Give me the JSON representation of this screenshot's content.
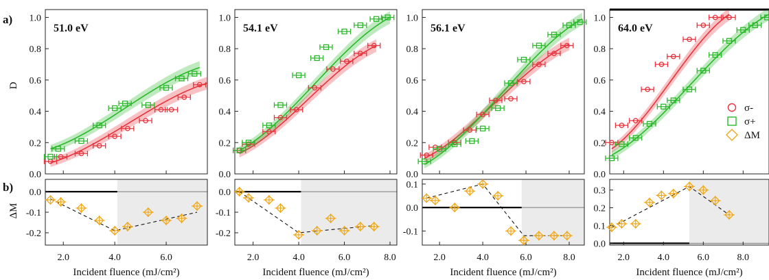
{
  "figure": {
    "row_a_label": "a)",
    "row_b_label": "b)",
    "ylabel_top": "D",
    "ylabel_bottom": "ΔM",
    "xlabel": "Incident fluence (mJ/cm²)"
  },
  "colors": {
    "sigma_minus": "#e8323c",
    "sigma_plus": "#2ab82a",
    "delta_m": "#f0a818",
    "shade": "#ebebeb"
  },
  "legend": {
    "placement": "right of panel 4, middle",
    "items": [
      {
        "key": "sigma_minus",
        "label": "σ-",
        "marker": "circle"
      },
      {
        "key": "sigma_plus",
        "label": "σ+",
        "marker": "square"
      },
      {
        "key": "delta_m",
        "label": "ΔM",
        "marker": "diamond"
      }
    ]
  },
  "chart_data": [
    {
      "type": "scatter",
      "title": "51.0 eV",
      "xlabel": "Incident fluence (mJ/cm²)",
      "ylabel": "D",
      "xlim": [
        1.3,
        7.6
      ],
      "xticks": [
        2.0,
        4.0,
        6.0
      ],
      "top": {
        "ylim": [
          0.0,
          1.05
        ],
        "yticks": [
          0.0,
          0.2,
          0.4,
          0.6,
          0.8,
          1.0
        ],
        "series": [
          {
            "key": "sigma_minus",
            "x": [
              1.5,
              1.9,
              2.7,
              3.4,
              4.0,
              4.5,
              5.2,
              5.8,
              6.2,
              6.7,
              7.3
            ],
            "y": [
              0.08,
              0.11,
              0.13,
              0.18,
              0.24,
              0.29,
              0.34,
              0.41,
              0.41,
              0.49,
              0.57
            ]
          },
          {
            "key": "sigma_plus",
            "x": [
              1.5,
              1.8,
              2.7,
              3.4,
              4.0,
              4.4,
              5.3,
              6.0,
              6.6,
              7.1
            ],
            "y": [
              0.11,
              0.16,
              0.21,
              0.31,
              0.42,
              0.45,
              0.44,
              0.55,
              0.61,
              0.64
            ]
          }
        ],
        "fits": [
          {
            "key": "sigma_minus",
            "x": [
              1.5,
              7.6
            ],
            "y": [
              0.07,
              0.58
            ]
          },
          {
            "key": "sigma_plus",
            "x": [
              1.5,
              7.3
            ],
            "y": [
              0.16,
              0.68
            ]
          }
        ]
      },
      "bottom": {
        "ylim": [
          -0.26,
          0.06
        ],
        "yticks": [
          -0.2,
          -0.1,
          0.0
        ],
        "shade_from_x": 4.1,
        "series": [
          {
            "key": "delta_m",
            "x": [
              1.5,
              1.9,
              2.7,
              3.4,
              4.0,
              4.5,
              5.3,
              6.0,
              6.6,
              7.2
            ],
            "y": [
              -0.04,
              -0.05,
              -0.08,
              -0.14,
              -0.19,
              -0.17,
              -0.1,
              -0.14,
              -0.13,
              -0.07
            ]
          }
        ],
        "fit": {
          "x": [
            1.5,
            4.0,
            7.2
          ],
          "y": [
            -0.035,
            -0.19,
            -0.1
          ]
        }
      }
    },
    {
      "type": "scatter",
      "title": "54.1 eV",
      "xlabel": "Incident fluence (mJ/cm²)",
      "xlim": [
        1.2,
        8.3
      ],
      "xticks": [
        2.0,
        4.0,
        6.0,
        8.0
      ],
      "top": {
        "ylim": [
          0.0,
          1.05
        ],
        "yticks": [
          0.0,
          0.2,
          0.4,
          0.6,
          0.8,
          1.0
        ],
        "series": [
          {
            "key": "sigma_minus",
            "x": [
              1.4,
              1.8,
              2.7,
              3.2,
              3.9,
              4.7,
              5.5,
              6.1,
              6.7,
              7.3
            ],
            "y": [
              0.15,
              0.19,
              0.27,
              0.36,
              0.41,
              0.55,
              0.67,
              0.72,
              0.77,
              0.82
            ]
          },
          {
            "key": "sigma_plus",
            "x": [
              1.4,
              1.8,
              2.7,
              3.2,
              4.0,
              4.8,
              5.2,
              6.0,
              6.7,
              7.4,
              7.9
            ],
            "y": [
              0.15,
              0.2,
              0.31,
              0.44,
              0.63,
              0.74,
              0.81,
              0.91,
              0.95,
              0.99,
              1.0
            ]
          }
        ],
        "fits": [
          {
            "key": "sigma_minus",
            "x": [
              1.4,
              7.4
            ],
            "y": [
              0.13,
              0.82
            ]
          },
          {
            "key": "sigma_plus",
            "x": [
              1.4,
              8.0
            ],
            "y": [
              0.15,
              1.0
            ]
          }
        ]
      },
      "bottom": {
        "ylim": [
          -0.26,
          0.06
        ],
        "yticks": [
          -0.2,
          -0.1,
          0.0
        ],
        "shade_from_x": 4.1,
        "series": [
          {
            "key": "delta_m",
            "x": [
              1.4,
              1.8,
              2.7,
              3.2,
              4.0,
              4.8,
              5.4,
              6.0,
              6.7,
              7.3
            ],
            "y": [
              0.0,
              -0.03,
              -0.04,
              -0.08,
              -0.21,
              -0.19,
              -0.13,
              -0.19,
              -0.17,
              -0.17
            ]
          }
        ],
        "fit": {
          "x": [
            1.4,
            4.0,
            7.3
          ],
          "y": [
            0.0,
            -0.2,
            -0.165
          ]
        }
      }
    },
    {
      "type": "scatter",
      "title": "56.1 eV",
      "xlabel": "Incident fluence (mJ/cm²)",
      "xlim": [
        1.2,
        8.7
      ],
      "xticks": [
        2.0,
        4.0,
        6.0,
        8.0
      ],
      "top": {
        "ylim": [
          0.0,
          1.05
        ],
        "yticks": [
          0.0,
          0.2,
          0.4,
          0.6,
          0.8,
          1.0
        ],
        "series": [
          {
            "key": "sigma_minus",
            "x": [
              1.4,
              1.8,
              2.7,
              3.4,
              4.0,
              4.6,
              5.3,
              5.9,
              6.6,
              7.3,
              7.9
            ],
            "y": [
              0.12,
              0.17,
              0.2,
              0.28,
              0.38,
              0.47,
              0.48,
              0.59,
              0.7,
              0.77,
              0.82
            ]
          },
          {
            "key": "sigma_plus",
            "x": [
              1.3,
              2.0,
              2.7,
              3.5,
              4.0,
              4.7,
              5.3,
              5.9,
              6.6,
              7.3,
              8.0,
              8.5
            ],
            "y": [
              0.08,
              0.16,
              0.19,
              0.21,
              0.29,
              0.42,
              0.58,
              0.73,
              0.82,
              0.89,
              0.95,
              0.97
            ]
          }
        ],
        "fits": [
          {
            "key": "sigma_minus",
            "x": [
              1.3,
              8.0
            ],
            "y": [
              0.1,
              0.83
            ]
          },
          {
            "key": "sigma_plus",
            "x": [
              1.3,
              8.6
            ],
            "y": [
              0.06,
              0.99
            ]
          }
        ]
      },
      "bottom": {
        "ylim": [
          -0.16,
          0.12
        ],
        "yticks": [
          -0.1,
          0.0,
          0.1
        ],
        "shade_from_x": 5.8,
        "series": [
          {
            "key": "delta_m",
            "x": [
              1.4,
              1.8,
              2.7,
              3.4,
              4.0,
              4.7,
              5.3,
              5.9,
              6.6,
              7.3,
              7.9
            ],
            "y": [
              0.04,
              0.03,
              0.0,
              0.07,
              0.1,
              0.05,
              -0.1,
              -0.14,
              -0.12,
              -0.12,
              -0.12
            ]
          }
        ],
        "fit": {
          "x": [
            1.4,
            4.0,
            5.9,
            7.9
          ],
          "y": [
            0.04,
            0.1,
            -0.12,
            -0.12
          ]
        }
      }
    },
    {
      "type": "scatter",
      "title": "64.0 eV",
      "xlabel": "Incident fluence (mJ/cm²)",
      "xlim": [
        1.3,
        9.3
      ],
      "xticks": [
        2.0,
        4.0,
        6.0,
        8.0
      ],
      "top": {
        "ylim": [
          0.0,
          1.05
        ],
        "yticks": [
          0.0,
          0.2,
          0.4,
          0.6,
          0.8,
          1.0
        ],
        "series": [
          {
            "key": "sigma_minus",
            "x": [
              1.4,
              1.9,
              2.6,
              3.2,
              3.9,
              4.5,
              5.3,
              6.0,
              6.6,
              7.3
            ],
            "y": [
              0.2,
              0.31,
              0.34,
              0.54,
              0.7,
              0.75,
              0.86,
              0.95,
              1.0,
              1.0
            ]
          },
          {
            "key": "sigma_plus",
            "x": [
              1.4,
              1.9,
              2.6,
              3.3,
              4.0,
              4.5,
              5.3,
              6.0,
              6.6,
              7.3,
              8.0,
              8.6,
              9.2
            ],
            "y": [
              0.1,
              0.19,
              0.23,
              0.32,
              0.43,
              0.47,
              0.54,
              0.66,
              0.76,
              0.85,
              0.92,
              0.95,
              1.0
            ]
          }
        ],
        "fits": [
          {
            "key": "sigma_minus",
            "x": [
              1.4,
              7.3
            ],
            "y": [
              0.16,
              1.02
            ]
          },
          {
            "key": "sigma_plus",
            "x": [
              1.4,
              9.3
            ],
            "y": [
              0.12,
              1.02
            ]
          }
        ]
      },
      "bottom": {
        "ylim": [
          -0.01,
          0.36
        ],
        "yticks": [
          0.0,
          0.1,
          0.2,
          0.3
        ],
        "shade_from_x": 5.3,
        "series": [
          {
            "key": "delta_m",
            "x": [
              1.4,
              1.9,
              2.6,
              3.3,
              3.9,
              4.5,
              5.3,
              6.0,
              6.6,
              7.3
            ],
            "y": [
              0.09,
              0.11,
              0.11,
              0.23,
              0.27,
              0.28,
              0.32,
              0.3,
              0.24,
              0.16
            ]
          }
        ],
        "fit": {
          "x": [
            1.4,
            5.3,
            7.3
          ],
          "y": [
            0.09,
            0.32,
            0.16
          ]
        }
      }
    }
  ]
}
